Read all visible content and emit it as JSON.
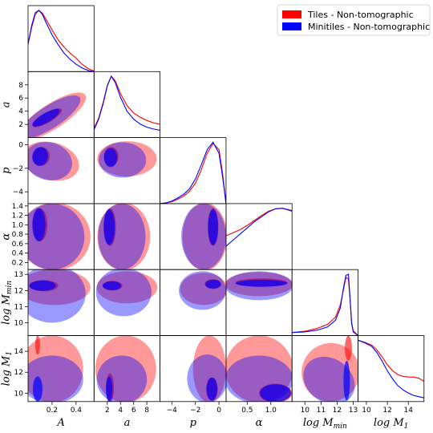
{
  "chart_data": {
    "type": "corner",
    "parameters": [
      {
        "key": "A",
        "label": "A",
        "range": [
          0.0,
          0.55
        ],
        "ticks": [
          0.2,
          0.4
        ],
        "tick_labels": [
          "0.2",
          "0.4"
        ],
        "show_x_ticks": true,
        "show_y_ticks": false
      },
      {
        "key": "a",
        "label": "a",
        "range": [
          0.0,
          10.0
        ],
        "ticks": [
          2,
          4,
          6,
          8
        ],
        "tick_labels": [
          "2",
          "4",
          "6",
          "8"
        ],
        "show_x_ticks": true,
        "show_y_ticks": true
      },
      {
        "key": "p",
        "label": "p",
        "range": [
          -5.0,
          0.6
        ],
        "ticks": [
          -4,
          -2,
          0
        ],
        "tick_labels": [
          "−4",
          "−2",
          "0"
        ],
        "show_x_ticks": true,
        "show_y_ticks": true
      },
      {
        "key": "alpha",
        "label": "α",
        "range": [
          0.05,
          1.45
        ],
        "ticks": [
          0.2,
          0.4,
          0.6,
          0.8,
          1.0,
          1.2,
          1.4
        ],
        "tick_labels": [
          "0.2",
          "0.4",
          "0.6",
          "0.8",
          "1.0",
          "1.2",
          "1.4"
        ],
        "x_ticks": [
          0.5,
          1.0
        ],
        "x_tick_labels": [
          "0.5",
          "1.0"
        ],
        "show_x_ticks": true,
        "show_y_ticks": true
      },
      {
        "key": "logMmin",
        "label": "log M",
        "sub": "min",
        "range": [
          9.2,
          13.3
        ],
        "ticks": [
          10,
          11,
          12,
          13
        ],
        "tick_labels": [
          "10",
          "11",
          "12",
          "13"
        ],
        "show_x_ticks": true,
        "show_y_ticks": true
      },
      {
        "key": "logM1",
        "label": "log M",
        "sub": "1",
        "range": [
          9.2,
          15.5
        ],
        "ticks": [
          10,
          12,
          14
        ],
        "tick_labels": [
          "10",
          "12",
          "14"
        ],
        "y_ticks": [
          10,
          12,
          14
        ],
        "y_tick_labels": [
          "10",
          "12",
          "14"
        ],
        "show_x_ticks": true,
        "show_y_ticks": true
      }
    ],
    "series": [
      {
        "name": "Tiles - Non-tomographic",
        "color": "#ff0000"
      },
      {
        "name": "Minitiles - Non-tomographic",
        "color": "#0000ff"
      }
    ],
    "legend_position": "top-right",
    "marginals": [
      {
        "param": "A",
        "x": [
          0.0,
          0.03,
          0.06,
          0.09,
          0.12,
          0.15,
          0.2,
          0.25,
          0.3,
          0.35,
          0.4,
          0.45,
          0.5,
          0.55
        ],
        "red": [
          0.45,
          0.72,
          0.93,
          1.0,
          0.95,
          0.85,
          0.68,
          0.52,
          0.4,
          0.3,
          0.22,
          0.12,
          0.05,
          0.01
        ],
        "blue": [
          0.45,
          0.75,
          0.96,
          1.0,
          0.93,
          0.8,
          0.6,
          0.44,
          0.3,
          0.2,
          0.12,
          0.06,
          0.02,
          0.0
        ]
      },
      {
        "param": "a",
        "x": [
          0.0,
          0.7,
          1.4,
          2.0,
          2.6,
          3.2,
          4.0,
          5.0,
          6.0,
          7.0,
          8.0,
          9.0,
          10.0
        ],
        "red": [
          0.15,
          0.32,
          0.58,
          0.85,
          1.0,
          0.93,
          0.72,
          0.52,
          0.4,
          0.33,
          0.28,
          0.24,
          0.22
        ],
        "blue": [
          0.13,
          0.3,
          0.56,
          0.84,
          1.0,
          0.9,
          0.66,
          0.43,
          0.3,
          0.22,
          0.17,
          0.14,
          0.12
        ]
      },
      {
        "param": "p",
        "x": [
          -5.0,
          -4.5,
          -4.0,
          -3.5,
          -3.0,
          -2.5,
          -2.0,
          -1.5,
          -1.0,
          -0.5,
          0.0,
          0.3,
          0.6
        ],
        "red": [
          0.0,
          0.01,
          0.03,
          0.07,
          0.12,
          0.2,
          0.33,
          0.55,
          0.82,
          0.98,
          0.88,
          0.5,
          0.0
        ],
        "blue": [
          0.0,
          0.01,
          0.04,
          0.09,
          0.15,
          0.24,
          0.4,
          0.63,
          0.88,
          1.0,
          0.82,
          0.45,
          0.0
        ]
      },
      {
        "param": "alpha",
        "x": [
          0.05,
          0.2,
          0.35,
          0.5,
          0.65,
          0.8,
          0.95,
          1.1,
          1.25,
          1.45
        ],
        "red": [
          0.55,
          0.6,
          0.65,
          0.72,
          0.8,
          0.88,
          0.95,
          0.99,
          1.0,
          0.95
        ],
        "blue": [
          0.38,
          0.48,
          0.58,
          0.68,
          0.78,
          0.86,
          0.94,
          0.99,
          1.0,
          0.96
        ]
      },
      {
        "param": "logMmin",
        "x": [
          9.2,
          10.0,
          10.8,
          11.4,
          11.9,
          12.2,
          12.4,
          12.55,
          12.7,
          12.8,
          12.9,
          13.0,
          13.3
        ],
        "red": [
          0.05,
          0.07,
          0.12,
          0.18,
          0.3,
          0.5,
          0.75,
          0.95,
          0.92,
          0.6,
          0.22,
          0.08,
          0.0
        ],
        "blue": [
          0.05,
          0.06,
          0.09,
          0.14,
          0.25,
          0.45,
          0.78,
          0.98,
          1.0,
          0.62,
          0.2,
          0.06,
          0.0
        ]
      },
      {
        "param": "logM1",
        "x": [
          9.2,
          9.8,
          10.5,
          11.0,
          11.5,
          12.0,
          12.5,
          13.0,
          13.5,
          14.0,
          14.5,
          15.0,
          15.5
        ],
        "red": [
          1.0,
          0.97,
          0.92,
          0.84,
          0.73,
          0.6,
          0.5,
          0.44,
          0.41,
          0.4,
          0.4,
          0.38,
          0.33
        ],
        "blue": [
          1.0,
          0.96,
          0.9,
          0.8,
          0.66,
          0.5,
          0.37,
          0.26,
          0.19,
          0.14,
          0.1,
          0.08,
          0.06
        ]
      }
    ],
    "joint_contours": [
      {
        "x": "A",
        "y": "a",
        "red": [
          {
            "cx": 0.2,
            "cy": 3.2,
            "rx": 0.33,
            "ry": 1.9,
            "rot": -33,
            "level": 95
          },
          {
            "cx": 0.16,
            "cy": 3.0,
            "rx": 0.14,
            "ry": 0.75,
            "rot": -30,
            "level": 68
          }
        ],
        "blue": [
          {
            "cx": 0.18,
            "cy": 3.1,
            "rx": 0.3,
            "ry": 1.7,
            "rot": -33,
            "level": 95
          },
          {
            "cx": 0.15,
            "cy": 3.0,
            "rx": 0.13,
            "ry": 0.72,
            "rot": -30,
            "level": 68
          }
        ]
      },
      {
        "x": "A",
        "y": "p",
        "red": [
          {
            "cx": 0.19,
            "cy": -1.4,
            "rx": 0.24,
            "ry": 1.6,
            "rot": 15,
            "level": 95
          },
          {
            "cx": 0.11,
            "cy": -1.0,
            "rx": 0.07,
            "ry": 0.8,
            "rot": 10,
            "level": 68
          }
        ],
        "blue": [
          {
            "cx": 0.17,
            "cy": -1.4,
            "rx": 0.2,
            "ry": 1.6,
            "rot": 15,
            "level": 95
          },
          {
            "cx": 0.1,
            "cy": -1.0,
            "rx": 0.065,
            "ry": 0.8,
            "rot": 10,
            "level": 68
          }
        ]
      },
      {
        "x": "a",
        "y": "p",
        "red": [
          {
            "cx": 5.0,
            "cy": -1.2,
            "rx": 4.5,
            "ry": 1.5,
            "rot": 0,
            "level": 95
          },
          {
            "cx": 2.6,
            "cy": -1.0,
            "rx": 1.1,
            "ry": 0.8,
            "rot": 0,
            "level": 68
          }
        ],
        "blue": [
          {
            "cx": 4.3,
            "cy": -1.3,
            "rx": 3.6,
            "ry": 1.5,
            "rot": 0,
            "level": 95
          },
          {
            "cx": 2.5,
            "cy": -1.1,
            "rx": 1.0,
            "ry": 0.8,
            "rot": 0,
            "level": 68
          }
        ]
      },
      {
        "x": "A",
        "y": "alpha",
        "red": [
          {
            "cx": 0.22,
            "cy": 0.75,
            "rx": 0.3,
            "ry": 0.72,
            "rot": 0,
            "level": 95
          },
          {
            "cx": 0.1,
            "cy": 1.0,
            "rx": 0.06,
            "ry": 0.35,
            "rot": 0,
            "level": 68
          }
        ],
        "blue": [
          {
            "cx": 0.2,
            "cy": 0.75,
            "rx": 0.27,
            "ry": 0.7,
            "rot": 0,
            "level": 95
          },
          {
            "cx": 0.09,
            "cy": 1.0,
            "rx": 0.055,
            "ry": 0.35,
            "rot": 0,
            "level": 68
          }
        ]
      },
      {
        "x": "a",
        "y": "alpha",
        "red": [
          {
            "cx": 4.5,
            "cy": 0.75,
            "rx": 4.0,
            "ry": 0.72,
            "rot": 0,
            "level": 95
          },
          {
            "cx": 2.4,
            "cy": 0.95,
            "rx": 0.9,
            "ry": 0.4,
            "rot": 0,
            "level": 68
          }
        ],
        "blue": [
          {
            "cx": 4.2,
            "cy": 0.75,
            "rx": 3.6,
            "ry": 0.7,
            "rot": 0,
            "level": 95
          },
          {
            "cx": 2.3,
            "cy": 0.95,
            "rx": 0.85,
            "ry": 0.38,
            "rot": 0,
            "level": 68
          }
        ]
      },
      {
        "x": "p",
        "y": "alpha",
        "red": [
          {
            "cx": -1.2,
            "cy": 0.75,
            "rx": 1.9,
            "ry": 0.72,
            "rot": 0,
            "level": 95
          },
          {
            "cx": -0.5,
            "cy": 0.95,
            "rx": 0.45,
            "ry": 0.4,
            "rot": 0,
            "level": 68
          }
        ],
        "blue": [
          {
            "cx": -1.3,
            "cy": 0.75,
            "rx": 1.9,
            "ry": 0.7,
            "rot": 0,
            "level": 95
          },
          {
            "cx": -0.5,
            "cy": 0.95,
            "rx": 0.42,
            "ry": 0.38,
            "rot": 0,
            "level": 68
          }
        ]
      },
      {
        "x": "A",
        "y": "logMmin",
        "red": [
          {
            "cx": 0.22,
            "cy": 12.2,
            "rx": 0.3,
            "ry": 1.1,
            "rot": 0,
            "level": 95
          },
          {
            "cx": 0.13,
            "cy": 12.3,
            "rx": 0.12,
            "ry": 0.35,
            "rot": 0,
            "level": 68
          }
        ],
        "blue": [
          {
            "cx": 0.2,
            "cy": 11.8,
            "rx": 0.28,
            "ry": 1.8,
            "rot": 0,
            "level": 95
          },
          {
            "cx": 0.12,
            "cy": 12.3,
            "rx": 0.11,
            "ry": 0.32,
            "rot": 0,
            "level": 68
          }
        ]
      },
      {
        "x": "a",
        "y": "logMmin",
        "red": [
          {
            "cx": 5.0,
            "cy": 12.2,
            "rx": 4.6,
            "ry": 1.0,
            "rot": 0,
            "level": 95
          },
          {
            "cx": 2.8,
            "cy": 12.3,
            "rx": 1.5,
            "ry": 0.3,
            "rot": 0,
            "level": 68
          }
        ],
        "blue": [
          {
            "cx": 4.5,
            "cy": 11.9,
            "rx": 4.2,
            "ry": 1.5,
            "rot": 0,
            "level": 95
          },
          {
            "cx": 2.7,
            "cy": 12.3,
            "rx": 1.4,
            "ry": 0.28,
            "rot": 0,
            "level": 68
          }
        ]
      },
      {
        "x": "p",
        "y": "logMmin",
        "red": [
          {
            "cx": -1.3,
            "cy": 12.1,
            "rx": 2.0,
            "ry": 1.0,
            "rot": 0,
            "level": 95
          },
          {
            "cx": -0.5,
            "cy": 12.4,
            "rx": 0.7,
            "ry": 0.3,
            "rot": 0,
            "level": 68
          }
        ],
        "blue": [
          {
            "cx": -1.4,
            "cy": 12.0,
            "rx": 2.0,
            "ry": 1.2,
            "rot": 0,
            "level": 95
          },
          {
            "cx": -0.5,
            "cy": 12.4,
            "rx": 0.65,
            "ry": 0.28,
            "rot": 0,
            "level": 68
          }
        ]
      },
      {
        "x": "alpha",
        "y": "logMmin",
        "red": [
          {
            "cx": 0.75,
            "cy": 12.4,
            "rx": 0.72,
            "ry": 0.75,
            "rot": 0,
            "level": 95
          },
          {
            "cx": 0.8,
            "cy": 12.5,
            "rx": 0.55,
            "ry": 0.25,
            "rot": 0,
            "level": 68
          }
        ],
        "blue": [
          {
            "cx": 0.75,
            "cy": 12.3,
            "rx": 0.72,
            "ry": 0.9,
            "rot": 0,
            "level": 95
          },
          {
            "cx": 0.8,
            "cy": 12.45,
            "rx": 0.55,
            "ry": 0.22,
            "rot": 0,
            "level": 68
          }
        ]
      },
      {
        "x": "A",
        "y": "logM1",
        "red": [
          {
            "cx": 0.2,
            "cy": 12.3,
            "rx": 0.26,
            "ry": 3.2,
            "rot": 0,
            "level": 95
          },
          {
            "cx": 0.08,
            "cy": 14.6,
            "rx": 0.02,
            "ry": 0.9,
            "rot": 0,
            "level": 68
          }
        ],
        "blue": [
          {
            "cx": 0.2,
            "cy": 11.3,
            "rx": 0.26,
            "ry": 2.3,
            "rot": 0,
            "level": 95
          },
          {
            "cx": 0.08,
            "cy": 10.4,
            "rx": 0.04,
            "ry": 1.2,
            "rot": 0,
            "level": 68
          }
        ]
      },
      {
        "x": "a",
        "y": "logM1",
        "red": [
          {
            "cx": 4.8,
            "cy": 12.3,
            "rx": 4.6,
            "ry": 3.2,
            "rot": 0,
            "level": 95
          },
          {
            "cx": 2.4,
            "cy": 10.5,
            "rx": 0.6,
            "ry": 1.4,
            "rot": 0,
            "level": 68
          }
        ],
        "blue": [
          {
            "cx": 4.2,
            "cy": 11.3,
            "rx": 3.8,
            "ry": 2.3,
            "rot": 0,
            "level": 95
          },
          {
            "cx": 2.3,
            "cy": 10.4,
            "rx": 0.5,
            "ry": 1.2,
            "rot": 0,
            "level": 68
          }
        ]
      },
      {
        "x": "p",
        "y": "logM1",
        "red": [
          {
            "cx": -0.8,
            "cy": 12.3,
            "rx": 1.4,
            "ry": 3.2,
            "rot": 0,
            "level": 95
          },
          {
            "cx": -0.6,
            "cy": 10.4,
            "rx": 0.5,
            "ry": 1.1,
            "rot": 0,
            "level": 68
          }
        ],
        "blue": [
          {
            "cx": -1.0,
            "cy": 11.4,
            "rx": 1.7,
            "ry": 2.3,
            "rot": 0,
            "level": 95
          },
          {
            "cx": -0.6,
            "cy": 10.4,
            "rx": 0.45,
            "ry": 1.1,
            "rot": 0,
            "level": 68
          }
        ]
      },
      {
        "x": "alpha",
        "y": "logM1",
        "red": [
          {
            "cx": 0.75,
            "cy": 12.3,
            "rx": 0.72,
            "ry": 3.2,
            "rot": 0,
            "level": 95
          },
          {
            "cx": 1.1,
            "cy": 10.0,
            "rx": 0.35,
            "ry": 0.9,
            "rot": 0,
            "level": 68
          }
        ],
        "blue": [
          {
            "cx": 0.75,
            "cy": 11.3,
            "rx": 0.72,
            "ry": 2.3,
            "rot": 0,
            "level": 95
          },
          {
            "cx": 1.1,
            "cy": 10.0,
            "rx": 0.33,
            "ry": 0.85,
            "rot": 0,
            "level": 68
          }
        ]
      },
      {
        "x": "logMmin",
        "y": "logM1",
        "red": [
          {
            "cx": 11.6,
            "cy": 12.0,
            "rx": 1.8,
            "ry": 2.8,
            "rot": 35,
            "level": 95
          },
          {
            "cx": 12.7,
            "cy": 14.3,
            "rx": 0.22,
            "ry": 1.2,
            "rot": 0,
            "level": 68
          }
        ],
        "blue": [
          {
            "cx": 11.5,
            "cy": 11.2,
            "rx": 1.7,
            "ry": 2.1,
            "rot": 35,
            "level": 95
          },
          {
            "cx": 12.6,
            "cy": 11.2,
            "rx": 0.2,
            "ry": 1.9,
            "rot": 0,
            "level": 68
          }
        ]
      }
    ]
  }
}
